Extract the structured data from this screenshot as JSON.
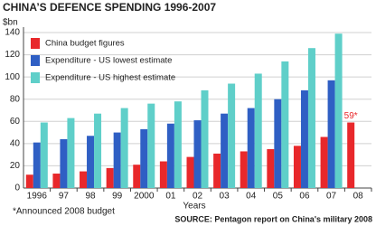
{
  "chart_data": {
    "type": "bar",
    "title": "CHINA’S DEFENCE SPENDING 1996-2007",
    "y_label": "$bn",
    "x_label": "Years",
    "footnote": "*Announced 2008 budget",
    "source": "SOURCE: Pentagon report on China's military 2008",
    "categories": [
      "1996",
      "97",
      "98",
      "99",
      "2000",
      "01",
      "02",
      "03",
      "04",
      "05",
      "06",
      "07",
      "08"
    ],
    "series": [
      {
        "name": "China budget figures",
        "color": "#e8282b",
        "values": [
          12,
          13,
          15,
          18,
          21,
          24,
          28,
          31,
          33,
          35,
          38,
          46,
          59
        ],
        "value_labels": [
          null,
          null,
          null,
          null,
          null,
          null,
          null,
          null,
          null,
          null,
          null,
          null,
          "59*"
        ]
      },
      {
        "name": "Expenditure - US lowest estimate",
        "color": "#2f5fc4",
        "values": [
          41,
          44,
          47,
          50,
          53,
          58,
          61,
          67,
          72,
          80,
          88,
          97,
          null
        ]
      },
      {
        "name": "Expenditure - US highest estimate",
        "color": "#5fcfc9",
        "values": [
          59,
          63,
          67,
          72,
          76,
          78,
          88,
          94,
          103,
          114,
          126,
          139,
          null
        ]
      }
    ],
    "ylim": [
      0,
      140
    ],
    "yticks": [
      0,
      20,
      40,
      60,
      80,
      100,
      120,
      140
    ],
    "grid": true,
    "legend": "top-left"
  }
}
